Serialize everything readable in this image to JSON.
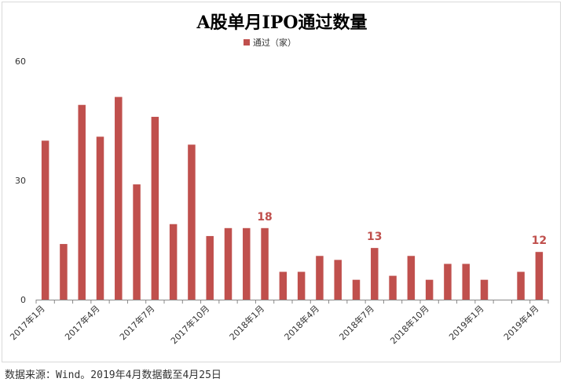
{
  "chart_data": {
    "type": "bar",
    "title": "A股单月IPO通过数量",
    "legend": {
      "position": "top-center",
      "label": "通过（家）"
    },
    "xlabel": "",
    "ylabel": "",
    "ylim": [
      0,
      60
    ],
    "yticks": [
      0,
      30,
      60
    ],
    "grid": false,
    "series_color": "#c0504d",
    "categories": [
      "2017年1月",
      "2017年2月",
      "2017年3月",
      "2017年4月",
      "2017年5月",
      "2017年6月",
      "2017年7月",
      "2017年8月",
      "2017年9月",
      "2017年10月",
      "2017年11月",
      "2017年12月",
      "2018年1月",
      "2018年2月",
      "2018年3月",
      "2018年4月",
      "2018年5月",
      "2018年6月",
      "2018年7月",
      "2018年8月",
      "2018年9月",
      "2018年10月",
      "2018年11月",
      "2018年12月",
      "2019年1月",
      "2019年2月",
      "2019年3月",
      "2019年4月"
    ],
    "tick_labels": [
      "2017年1月",
      "",
      "",
      "2017年4月",
      "",
      "",
      "2017年7月",
      "",
      "",
      "2017年10月",
      "",
      "",
      "2018年1月",
      "",
      "",
      "2018年4月",
      "",
      "",
      "2018年7月",
      "",
      "",
      "2018年10月",
      "",
      "",
      "2019年1月",
      "",
      "",
      "2019年4月"
    ],
    "series": [
      {
        "name": "通过（家）",
        "values": [
          40,
          14,
          49,
          41,
          51,
          29,
          46,
          19,
          39,
          16,
          18,
          18,
          18,
          7,
          7,
          11,
          10,
          5,
          13,
          6,
          11,
          5,
          9,
          9,
          5,
          0,
          7,
          12
        ]
      }
    ],
    "annotations": [
      {
        "category": "2018年1月",
        "value": 18,
        "text": "18"
      },
      {
        "category": "2018年7月",
        "value": 13,
        "text": "13"
      },
      {
        "category": "2019年4月",
        "value": 12,
        "text": "12"
      }
    ]
  },
  "source_note": "数据来源：Wind。2019年4月数据截至4月25日"
}
